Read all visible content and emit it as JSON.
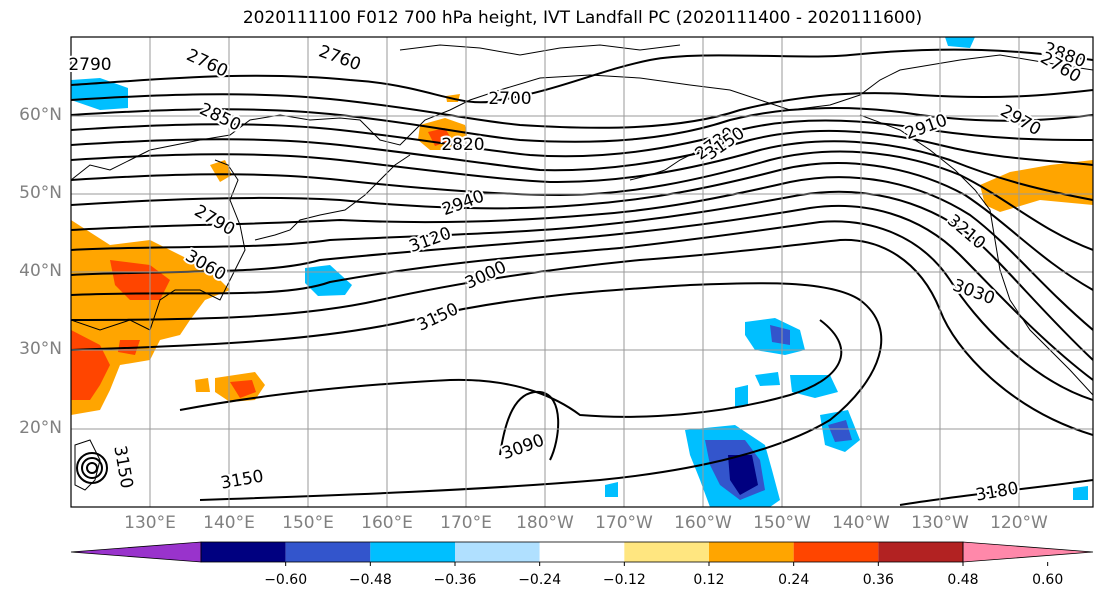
{
  "title": "2020111100 F012 700 hPa height, IVT Landfall PC (2020111400 - 2020111600)",
  "lat_labels": [
    "60°N",
    "50°N",
    "40°N",
    "30°N",
    "20°N"
  ],
  "lon_labels": [
    "130°E",
    "140°E",
    "150°E",
    "160°E",
    "170°E",
    "180°W",
    "170°W",
    "160°W",
    "150°W",
    "140°W",
    "130°W",
    "120°W"
  ],
  "contour_labels": [
    "2760",
    "2760",
    "2700",
    "2790",
    "2850",
    "2820",
    "2730",
    "2910",
    "2970",
    "2940",
    "2880",
    "2760",
    "2790",
    "3060",
    "3120",
    "3000",
    "3150",
    "3210",
    "3030",
    "3090",
    "3150",
    "3180",
    "3150",
    "3150"
  ],
  "colorbar": {
    "ticks": [
      "−0.60",
      "−0.48",
      "−0.36",
      "−0.24",
      "−0.12",
      "0.12",
      "0.24",
      "0.36",
      "0.48",
      "0.60"
    ],
    "colors": [
      "#9933cc",
      "#000080",
      "#3355cc",
      "#00bfff",
      "#b0e0ff",
      "#ffffff",
      "#ffe680",
      "#ffa500",
      "#ff4500",
      "#b22222",
      "#ff88aa"
    ]
  }
}
